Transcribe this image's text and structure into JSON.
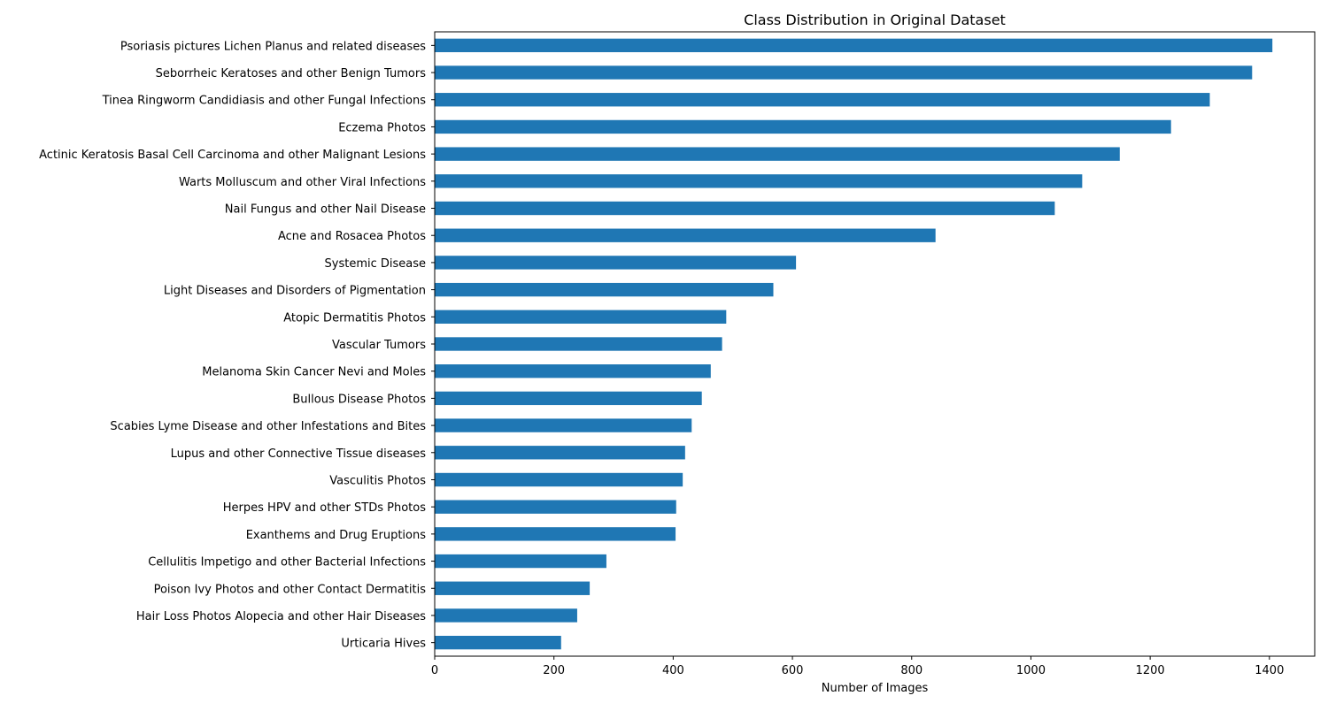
{
  "chart_data": {
    "type": "bar",
    "orientation": "horizontal",
    "title": "Class Distribution in Original Dataset",
    "xlabel": "Number of Images",
    "ylabel": "",
    "xlim": [
      0,
      1476
    ],
    "xticks": [
      0,
      200,
      400,
      600,
      800,
      1000,
      1200,
      1400
    ],
    "grid": false,
    "legend": "none",
    "bar_color": "#1f77b4",
    "categories": [
      "Psoriasis pictures Lichen Planus and related diseases",
      "Seborrheic Keratoses and other Benign Tumors",
      "Tinea Ringworm Candidiasis and other Fungal Infections",
      "Eczema Photos",
      "Actinic Keratosis Basal Cell Carcinoma and other Malignant Lesions",
      "Warts Molluscum and other Viral Infections",
      "Nail Fungus and other Nail Disease",
      "Acne and Rosacea Photos",
      "Systemic Disease",
      "Light Diseases and Disorders of Pigmentation",
      "Atopic Dermatitis Photos",
      "Vascular Tumors",
      "Melanoma Skin Cancer Nevi and Moles",
      "Bullous Disease Photos",
      "Scabies Lyme Disease and other Infestations and Bites",
      "Lupus and other Connective Tissue diseases",
      "Vasculitis Photos",
      "Herpes HPV and other STDs Photos",
      "Exanthems and Drug Eruptions",
      "Cellulitis Impetigo and other Bacterial Infections",
      "Poison Ivy Photos and other Contact Dermatitis",
      "Hair Loss Photos Alopecia and other Hair Diseases",
      "Urticaria Hives"
    ],
    "values": [
      1405,
      1371,
      1300,
      1235,
      1149,
      1086,
      1040,
      840,
      606,
      568,
      489,
      482,
      463,
      448,
      431,
      420,
      416,
      405,
      404,
      288,
      260,
      239,
      212
    ]
  }
}
